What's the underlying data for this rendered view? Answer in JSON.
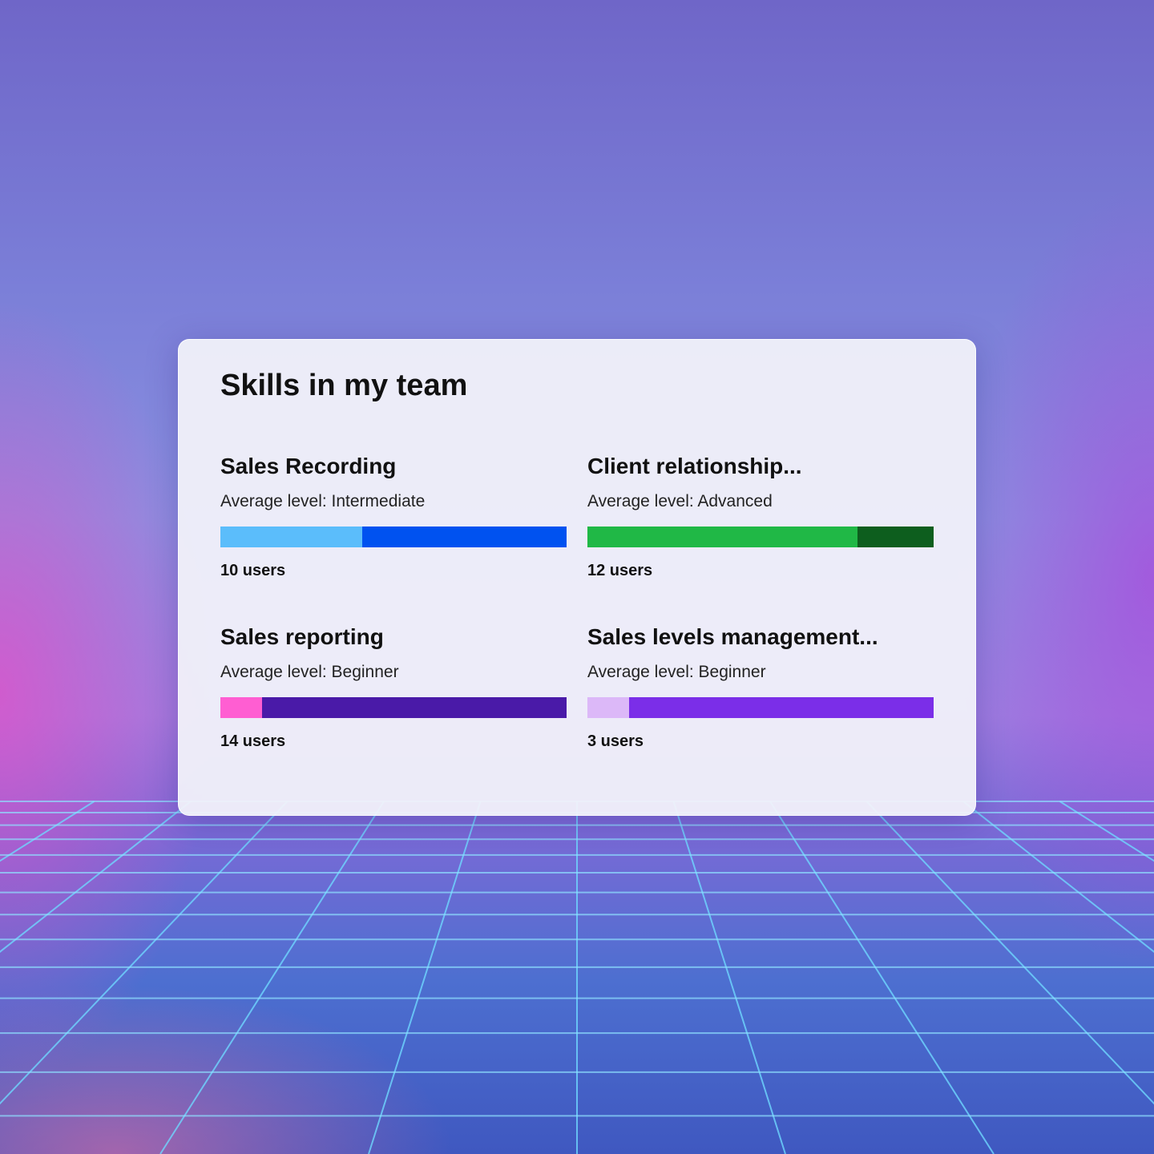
{
  "card": {
    "title": "Skills in my team"
  },
  "skills": [
    {
      "name": "Sales Recording",
      "level": "Average level: Intermediate",
      "users": "10 users",
      "fraction": 0.41,
      "colors": [
        "#5bbdfb",
        "#0052f0"
      ]
    },
    {
      "name": "Client relationship...",
      "level": "Average level: Advanced",
      "users": "12 users",
      "fraction": 0.78,
      "colors": [
        "#20b846",
        "#0d5e1e"
      ]
    },
    {
      "name": "Sales reporting",
      "level": "Average level: Beginner",
      "users": "14 users",
      "fraction": 0.12,
      "colors": [
        "#ff5ed2",
        "#4a1aa8"
      ]
    },
    {
      "name": "Sales levels management...",
      "level": "Average level: Beginner",
      "users": "3 users",
      "fraction": 0.12,
      "colors": [
        "#dcb8f8",
        "#7b2ee8"
      ]
    }
  ]
}
